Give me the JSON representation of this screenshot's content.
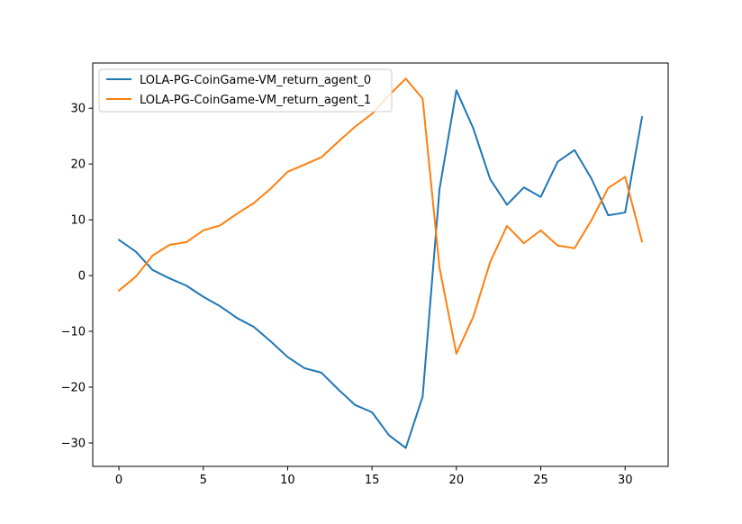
{
  "chart_data": {
    "type": "line",
    "title": "",
    "xlabel": "",
    "ylabel": "",
    "xlim": [
      -1.55,
      32.55
    ],
    "ylim": [
      -34.2,
      38.1
    ],
    "x_ticks": [
      0,
      5,
      10,
      15,
      20,
      25,
      30
    ],
    "x_tick_labels": [
      "0",
      "5",
      "10",
      "15",
      "20",
      "25",
      "30"
    ],
    "y_ticks": [
      -30,
      -20,
      -10,
      0,
      10,
      20,
      30
    ],
    "y_tick_labels": [
      "−30",
      "−20",
      "−10",
      "0",
      "10",
      "20",
      "30"
    ],
    "grid": false,
    "legend_position": "top-left",
    "x": [
      0,
      1,
      2,
      3,
      4,
      5,
      6,
      7,
      8,
      9,
      10,
      11,
      12,
      13,
      14,
      15,
      16,
      17,
      18,
      19,
      20,
      21,
      22,
      23,
      24,
      25,
      26,
      27,
      28,
      29,
      30,
      31
    ],
    "series": [
      {
        "name": "LOLA-PG-CoinGame-VM_return_agent_0",
        "color": "#1f77b4",
        "values": [
          6.4,
          4.3,
          1.0,
          -0.5,
          -1.8,
          -3.8,
          -5.5,
          -7.6,
          -9.2,
          -11.8,
          -14.6,
          -16.6,
          -17.4,
          -20.4,
          -23.2,
          -24.5,
          -28.6,
          -30.9,
          -21.7,
          15.5,
          33.2,
          26.4,
          17.3,
          12.7,
          15.8,
          14.1,
          20.4,
          22.5,
          17.4,
          10.8,
          11.3,
          28.4
        ]
      },
      {
        "name": "LOLA-PG-CoinGame-VM_return_agent_1",
        "color": "#ff7f0e",
        "values": [
          -2.7,
          -0.2,
          3.6,
          5.5,
          6.0,
          8.1,
          9.0,
          11.1,
          13.0,
          15.6,
          18.6,
          19.9,
          21.2,
          24.0,
          26.7,
          29.0,
          32.3,
          35.3,
          31.7,
          1.4,
          -14.0,
          -7.4,
          2.4,
          8.9,
          5.8,
          8.1,
          5.4,
          4.9,
          9.9,
          15.7,
          17.7,
          6.1
        ]
      }
    ]
  }
}
